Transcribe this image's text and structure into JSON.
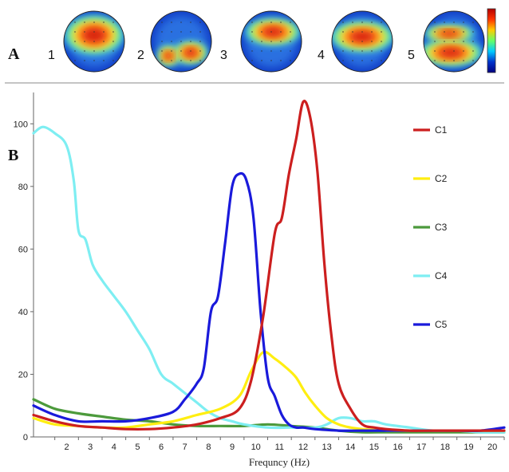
{
  "panels": [
    {
      "letter": "A",
      "maps": [
        {
          "label": "1",
          "focus": "central-frontal"
        },
        {
          "label": "2",
          "focus": "occipital-bilateral"
        },
        {
          "label": "3",
          "focus": "central-midline"
        },
        {
          "label": "4",
          "focus": "central-bilateral"
        },
        {
          "label": "5",
          "focus": "parietal-occipital"
        }
      ],
      "colorbar": {
        "colors": [
          "#b30000",
          "#ff3300",
          "#ffcc00",
          "#66ff66",
          "#00ccff",
          "#0033cc",
          "#000080"
        ]
      }
    },
    {
      "letter": "B"
    }
  ],
  "chart_data": {
    "type": "line",
    "title": "",
    "xlabel": "Frequncy (Hz)",
    "ylabel": "",
    "xlim": [
      1.1,
      21.0
    ],
    "ylim": [
      0,
      110
    ],
    "xticks": [
      2,
      3,
      4,
      5,
      6,
      7,
      8,
      9,
      10,
      11,
      12,
      13,
      14,
      15,
      16,
      17,
      18,
      19,
      20
    ],
    "yticks": [
      0,
      20,
      40,
      60,
      80,
      100
    ],
    "grid": false,
    "legend": "right",
    "series": [
      {
        "name": "C1",
        "color": "#cc1f1f",
        "x": [
          1.1,
          2,
          3,
          4,
          5,
          6,
          7,
          8,
          9,
          9.8,
          10.3,
          10.8,
          11.3,
          11.6,
          11.9,
          12.2,
          12.5,
          12.8,
          13.1,
          13.4,
          13.7,
          14,
          14.5,
          15,
          15.5,
          16,
          17,
          18,
          19,
          20,
          21
        ],
        "y": [
          7,
          5,
          3.5,
          3,
          2.5,
          2.5,
          3,
          4,
          6,
          9,
          18,
          38,
          65,
          70,
          84,
          95,
          107,
          102,
          85,
          55,
          32,
          17,
          9,
          4,
          3,
          2.5,
          2,
          2,
          2,
          2,
          2
        ]
      },
      {
        "name": "C2",
        "color": "#ffee11",
        "x": [
          1.1,
          2,
          3,
          4,
          5,
          6,
          7,
          8,
          9,
          9.8,
          10.3,
          10.8,
          11.3,
          11.8,
          12.2,
          12.6,
          13,
          13.5,
          14,
          14.5,
          15,
          16,
          17,
          18,
          19,
          20,
          21
        ],
        "y": [
          6,
          4,
          3.5,
          3,
          3,
          4,
          5,
          7,
          9,
          13,
          21,
          27,
          25,
          22,
          19,
          14,
          10,
          6,
          4,
          3,
          2.5,
          2,
          2,
          2,
          2,
          2,
          2
        ]
      },
      {
        "name": "C3",
        "color": "#4c9a3c",
        "x": [
          1.1,
          2,
          3,
          4,
          5,
          6,
          7,
          8,
          9,
          10,
          11,
          12,
          13,
          14,
          15,
          16,
          17,
          18,
          19,
          20,
          21
        ],
        "y": [
          12,
          9,
          7.5,
          6.5,
          5.5,
          5,
          4,
          3.5,
          3.5,
          3.5,
          4,
          3.5,
          3,
          2,
          1.5,
          1.5,
          1.5,
          1.5,
          1.5,
          1.5,
          1.5
        ]
      },
      {
        "name": "C4",
        "color": "#7eeef2",
        "x": [
          1.1,
          1.5,
          2,
          2.5,
          2.8,
          3,
          3.3,
          3.6,
          4,
          4.5,
          5,
          5.5,
          6,
          6.5,
          7,
          7.5,
          8,
          8.5,
          9,
          9.5,
          10,
          11,
          12,
          13,
          13.5,
          14,
          14.5,
          15,
          15.5,
          16,
          17,
          18,
          19,
          20,
          21
        ],
        "y": [
          97,
          99,
          97,
          93,
          82,
          66,
          63,
          55,
          50,
          45,
          40,
          34,
          28,
          20,
          17,
          14,
          11,
          8,
          6,
          5,
          4,
          3,
          3,
          3,
          4,
          6,
          6,
          5,
          5,
          4,
          3,
          2,
          2,
          1.5,
          1.5
        ]
      },
      {
        "name": "C5",
        "color": "#1a1adb",
        "x": [
          1.1,
          2,
          3,
          4,
          5,
          6,
          7,
          7.5,
          8,
          8.3,
          8.6,
          8.9,
          9.2,
          9.5,
          9.8,
          10.1,
          10.4,
          10.7,
          11,
          11.3,
          11.6,
          11.9,
          12.2,
          12.5,
          13,
          14,
          15,
          16,
          17,
          18,
          19,
          20,
          21
        ],
        "y": [
          10,
          7,
          5,
          5,
          5,
          6,
          8,
          12,
          17,
          22,
          40,
          45,
          62,
          80,
          84,
          82,
          70,
          40,
          19,
          13,
          7,
          4,
          3,
          3,
          2.5,
          2,
          2,
          2,
          2,
          2,
          2,
          2,
          3
        ]
      }
    ]
  }
}
